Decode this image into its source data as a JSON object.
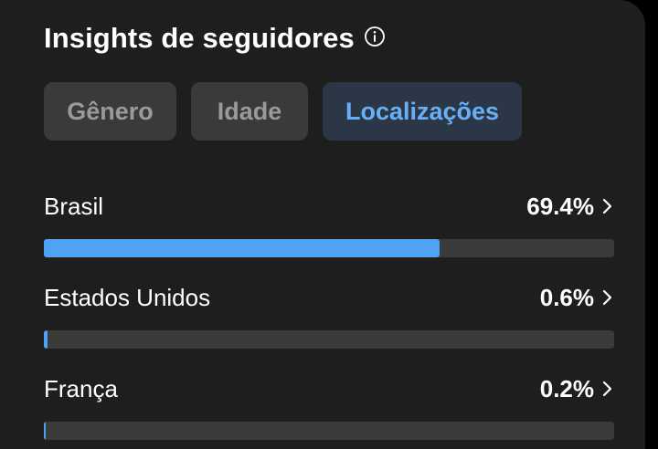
{
  "header": {
    "title": "Insights de seguidores",
    "info_icon": "info-icon"
  },
  "tabs": [
    {
      "label": "Gênero",
      "active": false
    },
    {
      "label": "Idade",
      "active": false
    },
    {
      "label": "Localizações",
      "active": true
    }
  ],
  "locations": [
    {
      "name": "Brasil",
      "percent_label": "69.4%",
      "value": 0.694
    },
    {
      "name": "Estados Unidos",
      "percent_label": "0.6%",
      "value": 0.006
    },
    {
      "name": "França",
      "percent_label": "0.2%",
      "value": 0.002
    }
  ],
  "colors": {
    "background": "#1e1e1e",
    "accent": "#4ea3f5",
    "bar_track": "#3b3b3b",
    "active_tab_bg": "#2b3747",
    "active_tab_text": "#68aff5"
  }
}
